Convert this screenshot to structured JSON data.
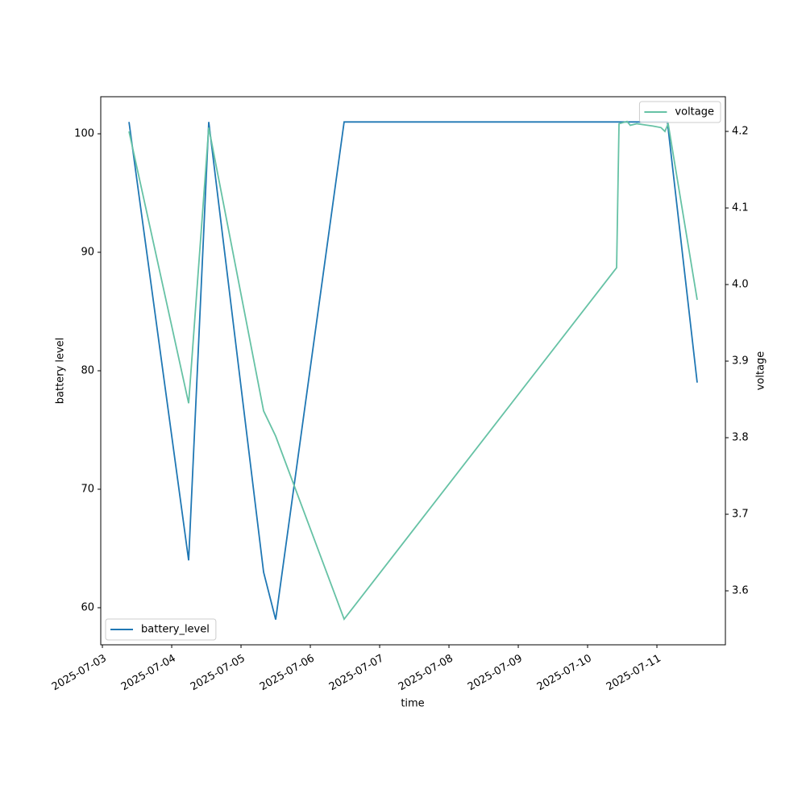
{
  "chart_data": {
    "type": "line",
    "xlabel": "time",
    "ylabel": "battery level",
    "y2label": "voltage",
    "xlim": [
      "2025-07-02T23:26",
      "2025-07-11T23:43"
    ],
    "xticks": [
      "2025-07-03",
      "2025-07-04",
      "2025-07-05",
      "2025-07-06",
      "2025-07-07",
      "2025-07-08",
      "2025-07-09",
      "2025-07-10",
      "2025-07-11"
    ],
    "ylim": [
      56.87,
      103.13
    ],
    "yticks": [
      60,
      70,
      80,
      90,
      100
    ],
    "y2lim": [
      3.5295,
      4.2453
    ],
    "y2ticks": [
      3.6,
      3.7,
      3.8,
      3.9,
      {
        "value": 4,
        "label": "4.0"
      },
      4.1,
      4.2
    ],
    "grid": false,
    "series": [
      {
        "name": "battery_level",
        "color": "#1f77b4",
        "axis": "y",
        "legend": "lower left",
        "x": [
          "2025-07-03T09:13",
          "2025-07-04T05:52",
          "2025-07-04T12:50",
          "2025-07-05T07:49",
          "2025-07-05T12:00",
          "2025-07-06T11:42",
          "2025-07-11T03:38",
          "2025-07-11T13:57"
        ],
        "values": [
          101,
          64,
          101,
          63,
          59,
          101,
          101,
          79
        ]
      },
      {
        "name": "voltage",
        "color": "#66c2a5",
        "axis": "y2",
        "legend": "upper right",
        "x": [
          "2025-07-03T09:13",
          "2025-07-04T05:52",
          "2025-07-04T12:50",
          "2025-07-05T07:49",
          "2025-07-05T12:00",
          "2025-07-06T11:42",
          "2025-07-10T10:03",
          "2025-07-10T10:53",
          "2025-07-10T13:40",
          "2025-07-10T14:47",
          "2025-07-10T17:01",
          "2025-07-10T22:36",
          "2025-07-11T01:24",
          "2025-07-11T02:47",
          "2025-07-11T03:54",
          "2025-07-11T13:57"
        ],
        "values": [
          4.2,
          3.845,
          4.205,
          3.835,
          3.802,
          3.563,
          4.022,
          4.21,
          4.213,
          4.208,
          4.21,
          4.207,
          4.205,
          4.2,
          4.21,
          3.98
        ]
      }
    ]
  }
}
